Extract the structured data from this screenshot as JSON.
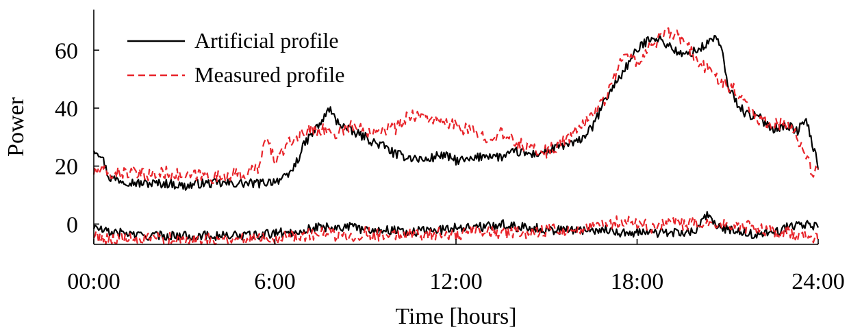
{
  "chart_data": {
    "type": "line",
    "title": "",
    "xlabel": "Time [hours]",
    "ylabel": "Power",
    "xlim": [
      0,
      24
    ],
    "ylim": [
      -7,
      74
    ],
    "grid": false,
    "legend_position": "top-left",
    "x_ticks": [
      {
        "value": 0,
        "label": "00:00"
      },
      {
        "value": 6,
        "label": "6:00"
      },
      {
        "value": 12,
        "label": "12:00"
      },
      {
        "value": 18,
        "label": "18:00"
      },
      {
        "value": 24,
        "label": "24:00"
      }
    ],
    "y_ticks": [
      {
        "value": 0,
        "label": "0"
      },
      {
        "value": 20,
        "label": "20"
      },
      {
        "value": 40,
        "label": "40"
      },
      {
        "value": 60,
        "label": "60"
      }
    ],
    "series": [
      {
        "name": "Artificial profile",
        "color": "#000000",
        "dash": "solid",
        "x": [
          0,
          0.25,
          0.5,
          1,
          1.5,
          2,
          2.5,
          3,
          3.5,
          4,
          4.5,
          5,
          5.5,
          6,
          6.4,
          6.7,
          7,
          7.3,
          7.6,
          7.8,
          8,
          8.5,
          9,
          9.3,
          9.6,
          10,
          10.5,
          11,
          11.5,
          12,
          12.5,
          13,
          13.5,
          14,
          14.5,
          15,
          15.5,
          16,
          16.5,
          17,
          17.5,
          18,
          18.5,
          19,
          19.5,
          20,
          20.3,
          20.6,
          20.8,
          21,
          21.3,
          21.6,
          22,
          22.5,
          23,
          23.3,
          23.6,
          23.8,
          24
        ],
        "y": [
          26,
          24,
          16,
          15,
          14,
          14,
          14,
          13,
          14,
          14,
          14,
          14,
          14,
          15,
          16,
          21,
          28,
          32,
          36,
          40,
          36,
          32,
          30,
          28,
          27,
          24,
          23,
          22,
          24,
          22,
          22,
          24,
          23,
          25,
          24,
          25,
          27,
          28,
          33,
          44,
          52,
          60,
          65,
          62,
          58,
          60,
          62,
          65,
          60,
          48,
          42,
          38,
          37,
          33,
          34,
          32,
          36,
          28,
          20
        ]
      },
      {
        "name": "Measured profile",
        "color": "#e8242a",
        "dash": "dashed",
        "x": [
          0,
          0.25,
          0.5,
          1,
          1.5,
          2,
          2.5,
          3,
          3.5,
          4,
          4.5,
          5,
          5.5,
          5.7,
          6,
          6.5,
          7,
          7.5,
          8,
          8.5,
          9,
          9.5,
          10,
          10.5,
          11,
          11.5,
          12,
          12.5,
          13,
          13.5,
          14,
          14.5,
          15,
          15.5,
          16,
          16.5,
          17,
          17.5,
          18,
          18.5,
          19,
          19.5,
          20,
          20.5,
          21,
          21.5,
          22,
          22.5,
          23,
          23.3,
          23.6,
          23.8,
          24
        ],
        "y": [
          18,
          19,
          17,
          18,
          17,
          17,
          18,
          16,
          17,
          16,
          17,
          17,
          20,
          30,
          22,
          28,
          32,
          33,
          31,
          34,
          32,
          33,
          33,
          38,
          37,
          35,
          34,
          32,
          30,
          31,
          28,
          26,
          25,
          28,
          32,
          38,
          44,
          58,
          56,
          62,
          66,
          64,
          56,
          52,
          48,
          44,
          36,
          35,
          34,
          30,
          24,
          18,
          18
        ]
      },
      {
        "name": "",
        "color": "#000000",
        "dash": "solid",
        "x": [
          0,
          0.5,
          1,
          1.5,
          2,
          2.5,
          3,
          3.5,
          4,
          4.5,
          5,
          5.5,
          6,
          6.5,
          7,
          7.5,
          8,
          8.5,
          9,
          9.5,
          10,
          10.5,
          11,
          11.5,
          12,
          12.5,
          13,
          13.5,
          14,
          14.5,
          15,
          15.5,
          16,
          16.5,
          17,
          17.5,
          18,
          18.5,
          19,
          19.5,
          20,
          20.3,
          20.6,
          21,
          21.5,
          22,
          22.5,
          23,
          23.5,
          24
        ],
        "y": [
          -1,
          -3,
          -3,
          -4,
          -4,
          -4,
          -4,
          -4,
          -4,
          -4,
          -4,
          -4,
          -3,
          -3,
          -2,
          -1,
          -1,
          -1,
          -2,
          -2,
          -2,
          -3,
          -2,
          -2,
          -1,
          -1,
          -1,
          0,
          -1,
          -1,
          -2,
          -2,
          -2,
          -2,
          -2,
          -3,
          -3,
          -3,
          -3,
          -3,
          -2,
          3,
          0,
          -2,
          -3,
          -4,
          -3,
          -1,
          0,
          -1
        ]
      },
      {
        "name": "",
        "color": "#e8242a",
        "dash": "dashed",
        "x": [
          0,
          0.5,
          1,
          1.5,
          2,
          2.5,
          3,
          3.5,
          4,
          4.5,
          5,
          5.5,
          6,
          6.5,
          7,
          7.5,
          8,
          8.5,
          9,
          9.5,
          10,
          10.5,
          11,
          11.5,
          12,
          12.5,
          13,
          13.5,
          14,
          14.5,
          15,
          15.5,
          16,
          16.5,
          17,
          17.5,
          18,
          18.5,
          19,
          19.5,
          20,
          20.5,
          21,
          21.5,
          22,
          22.5,
          23,
          23.5,
          24
        ],
        "y": [
          -4,
          -5,
          -5,
          -6,
          -5,
          -5,
          -6,
          -5,
          -5,
          -5,
          -5,
          -4,
          -5,
          -4,
          -4,
          -3,
          -4,
          -4,
          -3,
          -4,
          -4,
          -3,
          -4,
          -3,
          -4,
          -3,
          -3,
          -3,
          -3,
          -3,
          -2,
          -2,
          -2,
          -1,
          0,
          1,
          0,
          -1,
          0,
          0,
          0,
          -1,
          0,
          -1,
          -1,
          -3,
          -3,
          -4,
          -5
        ]
      }
    ]
  }
}
